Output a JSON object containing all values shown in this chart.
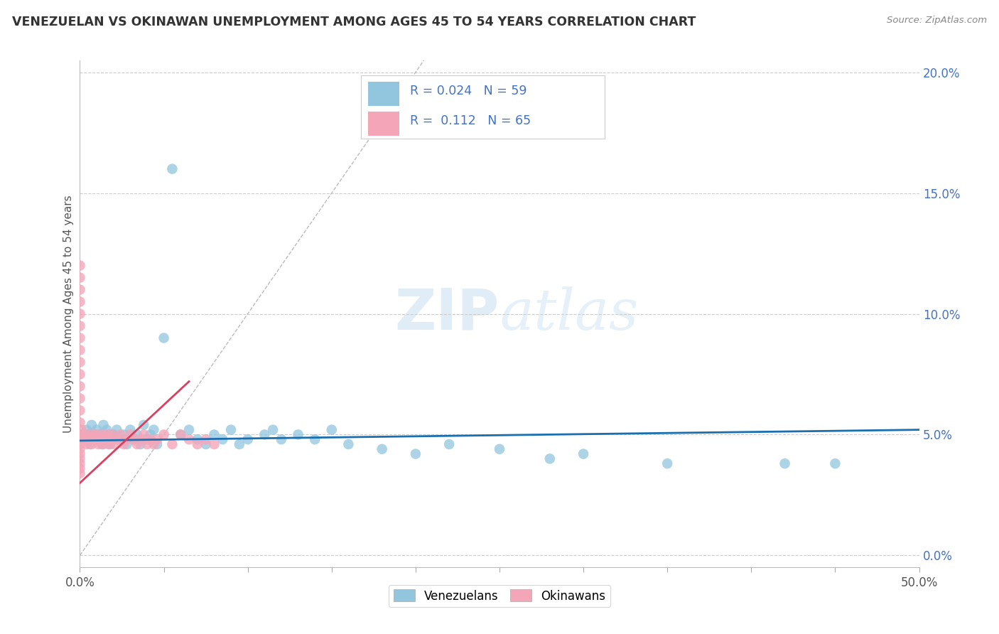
{
  "title": "VENEZUELAN VS OKINAWAN UNEMPLOYMENT AMONG AGES 45 TO 54 YEARS CORRELATION CHART",
  "source": "Source: ZipAtlas.com",
  "ylabel": "Unemployment Among Ages 45 to 54 years",
  "xlim": [
    0.0,
    0.5
  ],
  "ylim": [
    -0.005,
    0.205
  ],
  "xticks": [
    0.0,
    0.05,
    0.1,
    0.15,
    0.2,
    0.25,
    0.3,
    0.35,
    0.4,
    0.45,
    0.5
  ],
  "yticks_right": [
    0.0,
    0.05,
    0.1,
    0.15,
    0.2
  ],
  "yticklabels_right": [
    "0.0%",
    "5.0%",
    "10.0%",
    "15.0%",
    "20.0%"
  ],
  "venezuelan_R": 0.024,
  "venezuelan_N": 59,
  "okinawan_R": 0.112,
  "okinawan_N": 65,
  "venezuelan_color": "#92c5de",
  "okinawan_color": "#f4a6b8",
  "venezuelan_trend_color": "#1a6faf",
  "okinawan_trend_color": "#d94060",
  "legend_text_color": "#4472c4",
  "watermark_zip_color": "#c8dff0",
  "watermark_atlas_color": "#c8dff0",
  "background_color": "#ffffff",
  "venezuelan_x": [
    0.002,
    0.003,
    0.004,
    0.005,
    0.006,
    0.007,
    0.008,
    0.009,
    0.01,
    0.011,
    0.012,
    0.013,
    0.014,
    0.015,
    0.016,
    0.017,
    0.018,
    0.019,
    0.02,
    0.022,
    0.024,
    0.026,
    0.028,
    0.03,
    0.032,
    0.034,
    0.036,
    0.038,
    0.04,
    0.042,
    0.044,
    0.046,
    0.05,
    0.055,
    0.06,
    0.065,
    0.07,
    0.075,
    0.08,
    0.085,
    0.09,
    0.095,
    0.1,
    0.11,
    0.115,
    0.12,
    0.13,
    0.14,
    0.15,
    0.16,
    0.18,
    0.2,
    0.22,
    0.25,
    0.28,
    0.3,
    0.35,
    0.42,
    0.45
  ],
  "venezuelan_y": [
    0.05,
    0.048,
    0.052,
    0.05,
    0.046,
    0.054,
    0.048,
    0.05,
    0.052,
    0.048,
    0.05,
    0.046,
    0.054,
    0.048,
    0.052,
    0.05,
    0.046,
    0.048,
    0.05,
    0.052,
    0.048,
    0.05,
    0.046,
    0.052,
    0.048,
    0.05,
    0.046,
    0.054,
    0.048,
    0.05,
    0.052,
    0.046,
    0.09,
    0.16,
    0.05,
    0.052,
    0.048,
    0.046,
    0.05,
    0.048,
    0.052,
    0.046,
    0.048,
    0.05,
    0.052,
    0.048,
    0.05,
    0.048,
    0.052,
    0.046,
    0.044,
    0.042,
    0.046,
    0.044,
    0.04,
    0.042,
    0.038,
    0.038,
    0.038
  ],
  "okinawan_x": [
    0.0,
    0.0,
    0.0,
    0.0,
    0.0,
    0.0,
    0.0,
    0.0,
    0.0,
    0.0,
    0.0,
    0.0,
    0.0,
    0.0,
    0.0,
    0.0,
    0.0,
    0.0,
    0.0,
    0.0,
    0.0,
    0.0,
    0.0,
    0.0,
    0.0,
    0.001,
    0.002,
    0.003,
    0.004,
    0.005,
    0.006,
    0.007,
    0.008,
    0.009,
    0.01,
    0.011,
    0.012,
    0.013,
    0.014,
    0.015,
    0.016,
    0.017,
    0.018,
    0.019,
    0.02,
    0.022,
    0.024,
    0.026,
    0.028,
    0.03,
    0.032,
    0.034,
    0.036,
    0.038,
    0.04,
    0.042,
    0.044,
    0.046,
    0.05,
    0.055,
    0.06,
    0.065,
    0.07,
    0.075,
    0.08
  ],
  "okinawan_y": [
    0.12,
    0.115,
    0.11,
    0.105,
    0.1,
    0.095,
    0.09,
    0.085,
    0.08,
    0.075,
    0.07,
    0.065,
    0.06,
    0.055,
    0.05,
    0.048,
    0.046,
    0.044,
    0.042,
    0.04,
    0.038,
    0.036,
    0.034,
    0.05,
    0.048,
    0.052,
    0.05,
    0.048,
    0.046,
    0.05,
    0.048,
    0.046,
    0.05,
    0.048,
    0.05,
    0.046,
    0.048,
    0.05,
    0.046,
    0.048,
    0.05,
    0.046,
    0.048,
    0.05,
    0.046,
    0.048,
    0.05,
    0.046,
    0.048,
    0.05,
    0.048,
    0.046,
    0.048,
    0.05,
    0.046,
    0.048,
    0.046,
    0.048,
    0.05,
    0.046,
    0.05,
    0.048,
    0.046,
    0.048,
    0.046
  ],
  "venezuelan_trend_x": [
    0.0,
    0.5
  ],
  "venezuelan_trend_y": [
    0.0475,
    0.052
  ],
  "okinawan_trend_x": [
    0.0,
    0.065
  ],
  "okinawan_trend_y": [
    0.03,
    0.072
  ]
}
